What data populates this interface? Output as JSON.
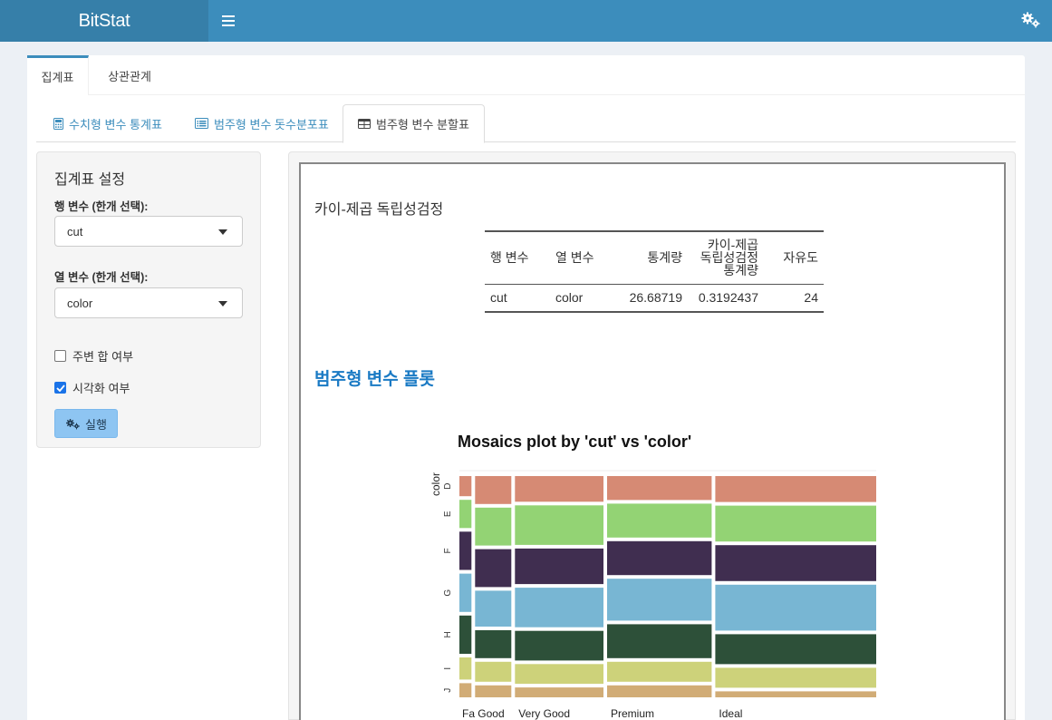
{
  "app": {
    "title": "BitStat"
  },
  "header": {
    "menu_icon": "menu-icon",
    "settings_icon": "gears-icon"
  },
  "top_tabs": [
    {
      "label": "집계표",
      "active": true
    },
    {
      "label": "상관관계",
      "active": false
    }
  ],
  "sub_tabs": [
    {
      "label": "수치형 변수 통계표",
      "icon": "calculator-icon",
      "active": false
    },
    {
      "label": "범주형 변수 돗수분포표",
      "icon": "list-icon",
      "active": false
    },
    {
      "label": "범주형 변수 분할표",
      "icon": "table-icon",
      "active": true
    }
  ],
  "settings": {
    "title": "집계표 설정",
    "row_label": "행 변수 (한개 선택):",
    "row_value": "cut",
    "col_label": "열 변수 (한개 선택):",
    "col_value": "color",
    "margin_label": "주변 합 여부",
    "margin_checked": false,
    "viz_label": "시각화 여부",
    "viz_checked": true,
    "run_label": "실행"
  },
  "output": {
    "test_heading": "카이-제곱 독립성검정",
    "table": {
      "headers": [
        "행 변수",
        "열 변수",
        "통계량",
        "카이-제곱\n독립성검정\n통계량",
        "자유도"
      ],
      "row": [
        "cut",
        "color",
        "26.68719",
        "0.3192437",
        "24"
      ]
    },
    "plot_heading": "범주형 변수 플롯"
  },
  "chart_data": {
    "type": "mosaic",
    "title": "Mosaics plot by 'cut' vs 'color'",
    "ylabel": "color",
    "x_tick_labels": [
      "Fa",
      "Good",
      "Very Good",
      "Premium",
      "Ideal"
    ],
    "y_tick_labels": [
      "D",
      "E",
      "F",
      "G",
      "H",
      "I",
      "J"
    ],
    "categories": [
      "Fair",
      "Good",
      "Very Good",
      "Premium",
      "Ideal"
    ],
    "colors": [
      "D",
      "E",
      "F",
      "G",
      "H",
      "I",
      "J"
    ],
    "cut_proportions": [
      0.03,
      0.09,
      0.22,
      0.26,
      0.4
    ],
    "color_proportions_by_cut": [
      [
        0.1,
        0.14,
        0.19,
        0.19,
        0.19,
        0.11,
        0.07
      ],
      [
        0.14,
        0.19,
        0.19,
        0.18,
        0.14,
        0.1,
        0.06
      ],
      [
        0.13,
        0.2,
        0.18,
        0.2,
        0.15,
        0.1,
        0.05
      ],
      [
        0.12,
        0.17,
        0.17,
        0.21,
        0.17,
        0.1,
        0.06
      ],
      [
        0.13,
        0.18,
        0.18,
        0.23,
        0.15,
        0.1,
        0.03
      ]
    ],
    "palette": [
      "#d68a74",
      "#93d374",
      "#402e50",
      "#78b6d3",
      "#2d5039",
      "#cdd27a",
      "#d1ac76"
    ]
  }
}
